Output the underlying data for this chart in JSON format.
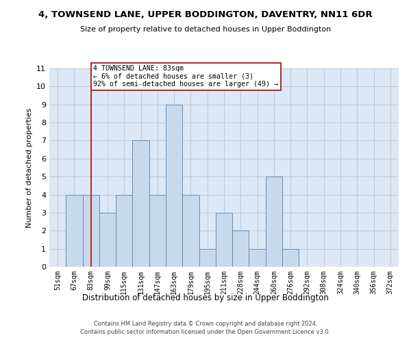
{
  "title1": "4, TOWNSEND LANE, UPPER BODDINGTON, DAVENTRY, NN11 6DR",
  "title2": "Size of property relative to detached houses in Upper Boddington",
  "xlabel": "Distribution of detached houses by size in Upper Boddington",
  "ylabel": "Number of detached properties",
  "footer1": "Contains HM Land Registry data © Crown copyright and database right 2024.",
  "footer2": "Contains public sector information licensed under the Open Government Licence v3.0.",
  "bin_labels": [
    "51sqm",
    "67sqm",
    "83sqm",
    "99sqm",
    "115sqm",
    "131sqm",
    "147sqm",
    "163sqm",
    "179sqm",
    "195sqm",
    "211sqm",
    "228sqm",
    "244sqm",
    "260sqm",
    "276sqm",
    "292sqm",
    "308sqm",
    "324sqm",
    "340sqm",
    "356sqm",
    "372sqm"
  ],
  "bar_values": [
    0,
    4,
    4,
    3,
    4,
    7,
    4,
    9,
    4,
    1,
    3,
    2,
    1,
    5,
    1,
    0,
    0,
    0,
    0,
    0,
    0
  ],
  "bar_color": "#c9d9ec",
  "bar_edgecolor": "#5b8db8",
  "property_bin_index": 2,
  "vline_color": "#b03030",
  "ann_line1": "4 TOWNSEND LANE: 83sqm",
  "ann_line2": "← 6% of detached houses are smaller (3)",
  "ann_line3": "92% of semi-detached houses are larger (49) →",
  "ann_edgecolor": "#b03030",
  "ylim": [
    0,
    11
  ],
  "yticks": [
    0,
    1,
    2,
    3,
    4,
    5,
    6,
    7,
    8,
    9,
    10,
    11
  ],
  "background_color": "#ffffff",
  "ax_bg_color": "#dce8f5",
  "grid_color": "#c0c8d8"
}
